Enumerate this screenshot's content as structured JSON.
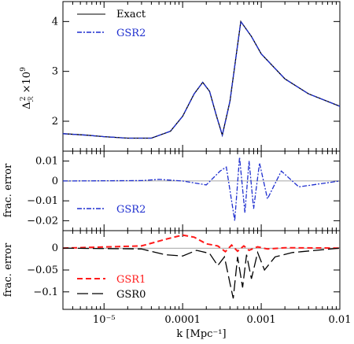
{
  "chart_data": [
    {
      "type": "line",
      "panel": "top",
      "ylabel_main": "Δ",
      "ylabel_sub": "ℛ",
      "ylabel_sup": "2",
      "ylabel_suffix": " ×10",
      "ylabel_exp": "9",
      "xscale": "log",
      "xlim": [
        3e-06,
        0.01
      ],
      "ylim": [
        1.4,
        4.4
      ],
      "yticks": [
        2,
        3,
        4
      ],
      "ytick_labels": [
        "2",
        "3",
        "4"
      ],
      "legend": [
        {
          "label": "Exact",
          "color": "#000000",
          "style": "solid"
        },
        {
          "label": "GSR2",
          "color": "#1f2fcf",
          "style": "dashdot"
        }
      ],
      "series": [
        {
          "name": "Exact",
          "color": "#000000",
          "style": "solid",
          "x": [
            3e-06,
            6e-06,
            1e-05,
            2e-05,
            4e-05,
            7e-05,
            0.0001,
            0.00014,
            0.00018,
            0.00022,
            0.00027,
            0.00032,
            0.0004,
            0.00055,
            0.00075,
            0.001,
            0.002,
            0.004,
            0.01
          ],
          "y": [
            1.75,
            1.72,
            1.69,
            1.66,
            1.66,
            1.8,
            2.1,
            2.55,
            2.78,
            2.6,
            2.1,
            1.72,
            2.4,
            4.0,
            3.7,
            3.35,
            2.85,
            2.55,
            2.3
          ]
        },
        {
          "name": "GSR2",
          "color": "#1f2fcf",
          "style": "dashdot",
          "x": [
            3e-06,
            6e-06,
            1e-05,
            2e-05,
            4e-05,
            7e-05,
            0.0001,
            0.00014,
            0.00018,
            0.00022,
            0.00027,
            0.00032,
            0.0004,
            0.00055,
            0.00075,
            0.001,
            0.002,
            0.004,
            0.01
          ],
          "y": [
            1.75,
            1.72,
            1.69,
            1.66,
            1.66,
            1.8,
            2.1,
            2.55,
            2.78,
            2.6,
            2.1,
            1.72,
            2.4,
            4.0,
            3.7,
            3.35,
            2.85,
            2.55,
            2.3
          ]
        }
      ]
    },
    {
      "type": "line",
      "panel": "middle",
      "ylabel": "frac. error",
      "xscale": "log",
      "xlim": [
        3e-06,
        0.01
      ],
      "ylim": [
        -0.025,
        0.015
      ],
      "yticks": [
        0.01,
        0,
        -0.01,
        -0.02
      ],
      "ytick_labels": [
        "0.01",
        "0",
        "−0.01",
        "−0.02"
      ],
      "legend": [
        {
          "label": "GSR2",
          "color": "#1f2fcf",
          "style": "dashdot"
        }
      ],
      "series": [
        {
          "name": "GSR2",
          "color": "#1f2fcf",
          "style": "dashdot",
          "x": [
            3e-06,
            3e-05,
            5e-05,
            0.0001,
            0.0002,
            0.0003,
            0.00036,
            0.00042,
            0.00046,
            0.00053,
            0.00062,
            0.0007,
            0.0008,
            0.00095,
            0.0012,
            0.0018,
            0.003,
            0.01
          ],
          "y": [
            0,
            0.0002,
            0.0008,
            0,
            -0.002,
            0.005,
            0.007,
            -0.01,
            -0.02,
            0.012,
            -0.016,
            0.01,
            -0.014,
            0.009,
            -0.009,
            0.005,
            -0.003,
            0
          ]
        }
      ]
    },
    {
      "type": "line",
      "panel": "bottom",
      "ylabel": "frac. error",
      "xlabel": "k [Mpc⁻¹]",
      "xscale": "log",
      "xlim": [
        3e-06,
        0.01
      ],
      "ylim": [
        -0.14,
        0.04
      ],
      "xticks": [
        1e-05,
        0.0001,
        0.001,
        0.01
      ],
      "xtick_labels": [
        "10⁻⁵",
        "0.0001",
        "0.001",
        "0.01"
      ],
      "yticks": [
        0,
        -0.05,
        -0.1
      ],
      "ytick_labels": [
        "0",
        "−0.05",
        "−0.1"
      ],
      "legend": [
        {
          "label": "GSR1",
          "color": "#ff1a1a",
          "style": "dashed"
        },
        {
          "label": "GSR0",
          "color": "#000000",
          "style": "longdash"
        }
      ],
      "series": [
        {
          "name": "GSR1",
          "color": "#ff1a1a",
          "style": "dashed",
          "x": [
            3e-06,
            3e-05,
            6e-05,
            0.0001,
            0.00014,
            0.0002,
            0.00028,
            0.00035,
            0.00042,
            0.0005,
            0.0006,
            0.0007,
            0.0009,
            0.0012,
            0.002,
            0.01
          ],
          "y": [
            0,
            0.005,
            0.02,
            0.03,
            0.025,
            0.01,
            0.005,
            -0.008,
            0.007,
            -0.007,
            0.005,
            -0.005,
            0.003,
            -0.002,
            0.001,
            0
          ]
        },
        {
          "name": "GSR0",
          "color": "#000000",
          "style": "longdash",
          "x": [
            3e-06,
            3e-05,
            6e-05,
            0.0001,
            0.00015,
            0.00022,
            0.00028,
            0.00034,
            0.0004,
            0.00044,
            0.0005,
            0.00058,
            0.00065,
            0.00075,
            0.0009,
            0.0011,
            0.0015,
            0.0025,
            0.01
          ],
          "y": [
            0,
            -0.002,
            -0.015,
            -0.018,
            -0.005,
            -0.012,
            -0.04,
            -0.02,
            -0.08,
            -0.115,
            -0.02,
            -0.09,
            -0.015,
            -0.07,
            -0.01,
            -0.05,
            -0.02,
            -0.01,
            0
          ]
        }
      ]
    }
  ]
}
